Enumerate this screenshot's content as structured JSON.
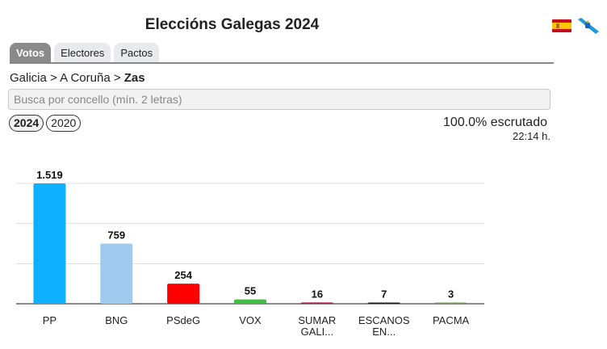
{
  "header": {
    "title": "Eleccións Galegas 2024"
  },
  "languages": [
    {
      "name": "spain-flag-icon",
      "code": "es"
    },
    {
      "name": "galicia-flag-icon",
      "code": "gl"
    }
  ],
  "tabs": [
    {
      "label": "Votos",
      "active": true
    },
    {
      "label": "Electores",
      "active": false
    },
    {
      "label": "Pactos",
      "active": false
    }
  ],
  "breadcrumb": {
    "path": "Galicia > A Coruña > ",
    "current": "Zas"
  },
  "search": {
    "placeholder": "Busca por concello (mín. 2 letras)",
    "value": ""
  },
  "years": [
    {
      "label": "2024",
      "active": true
    },
    {
      "label": "2020",
      "active": false
    }
  ],
  "status": {
    "scrutiny": "100.0% escrutado",
    "time": "22:14 h."
  },
  "chart_data": {
    "type": "bar",
    "categories": [
      "PP",
      "BNG",
      "PSdeG",
      "VOX",
      "SUMAR GALI...",
      "ESCANOS EN...",
      "PACMA"
    ],
    "category_lines": [
      [
        "PP"
      ],
      [
        "BNG"
      ],
      [
        "PSdeG"
      ],
      [
        "VOX"
      ],
      [
        "SUMAR",
        "GALI..."
      ],
      [
        "ESCANOS",
        "EN..."
      ],
      [
        "PACMA"
      ]
    ],
    "values": [
      1519,
      759,
      254,
      55,
      16,
      7,
      3
    ],
    "value_labels": [
      "1.519",
      "759",
      "254",
      "55",
      "16",
      "7",
      "3"
    ],
    "colors": [
      "#0db1ff",
      "#9fcaed",
      "#ff0000",
      "#3cc13c",
      "#c0134f",
      "#1a1a1a",
      "#6aa13b"
    ],
    "ylim": [
      0,
      1519
    ],
    "grid": true,
    "legend": "none",
    "title": "",
    "xlabel": "",
    "ylabel": ""
  }
}
